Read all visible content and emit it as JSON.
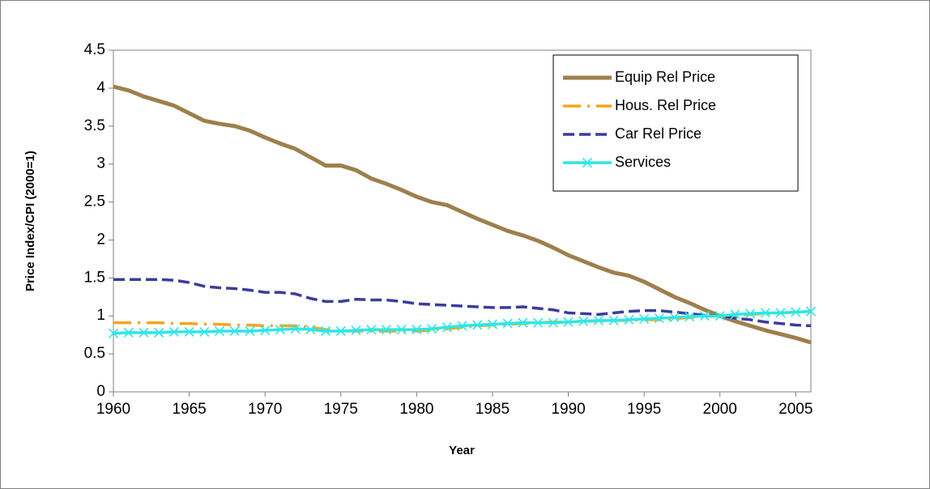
{
  "chart_data": {
    "type": "line",
    "x_label": "Year",
    "y_label": "Price Index/CPI (2000=1)",
    "x": [
      1960,
      1961,
      1962,
      1963,
      1964,
      1965,
      1966,
      1967,
      1968,
      1969,
      1970,
      1971,
      1972,
      1973,
      1974,
      1975,
      1976,
      1977,
      1978,
      1979,
      1980,
      1981,
      1982,
      1983,
      1984,
      1985,
      1986,
      1987,
      1988,
      1989,
      1990,
      1991,
      1992,
      1993,
      1994,
      1995,
      1996,
      1997,
      1998,
      1999,
      2000,
      2001,
      2002,
      2003,
      2004,
      2005,
      2006
    ],
    "series": [
      {
        "name": "Equip Rel Price",
        "color": "#9e7f4c",
        "style": "solid",
        "values": [
          4.02,
          3.97,
          3.89,
          3.83,
          3.77,
          3.67,
          3.57,
          3.53,
          3.5,
          3.44,
          3.35,
          3.27,
          3.2,
          3.09,
          2.98,
          2.98,
          2.92,
          2.81,
          2.74,
          2.66,
          2.57,
          2.5,
          2.46,
          2.37,
          2.28,
          2.2,
          2.12,
          2.06,
          1.99,
          1.9,
          1.8,
          1.72,
          1.64,
          1.57,
          1.53,
          1.45,
          1.35,
          1.25,
          1.17,
          1.08,
          1.0,
          0.93,
          0.87,
          0.81,
          0.76,
          0.71,
          0.65
        ]
      },
      {
        "name": "Hous. Rel Price",
        "color": "#f7a41c",
        "style": "dashdot",
        "values": [
          0.91,
          0.91,
          0.91,
          0.91,
          0.9,
          0.9,
          0.89,
          0.89,
          0.88,
          0.88,
          0.87,
          0.87,
          0.87,
          0.85,
          0.82,
          0.8,
          0.8,
          0.8,
          0.8,
          0.8,
          0.8,
          0.81,
          0.83,
          0.85,
          0.87,
          0.88,
          0.89,
          0.9,
          0.91,
          0.92,
          0.92,
          0.93,
          0.93,
          0.94,
          0.94,
          0.95,
          0.95,
          0.96,
          0.98,
          0.99,
          1.0,
          1.01,
          1.02,
          1.03,
          1.04,
          1.05,
          1.06
        ]
      },
      {
        "name": "Car Rel Price",
        "color": "#3c3c9c",
        "style": "dashed",
        "values": [
          1.48,
          1.48,
          1.48,
          1.48,
          1.47,
          1.44,
          1.39,
          1.37,
          1.36,
          1.34,
          1.31,
          1.31,
          1.29,
          1.23,
          1.19,
          1.19,
          1.22,
          1.21,
          1.21,
          1.19,
          1.16,
          1.15,
          1.14,
          1.13,
          1.12,
          1.11,
          1.11,
          1.12,
          1.1,
          1.08,
          1.04,
          1.03,
          1.02,
          1.04,
          1.06,
          1.07,
          1.07,
          1.05,
          1.03,
          1.01,
          1.0,
          0.97,
          0.95,
          0.92,
          0.9,
          0.88,
          0.87
        ]
      },
      {
        "name": "Services",
        "color": "#2ee6e6",
        "style": "solid",
        "marker": "x",
        "values": [
          0.77,
          0.78,
          0.78,
          0.78,
          0.79,
          0.79,
          0.79,
          0.8,
          0.8,
          0.8,
          0.81,
          0.82,
          0.83,
          0.82,
          0.8,
          0.8,
          0.81,
          0.82,
          0.82,
          0.82,
          0.82,
          0.83,
          0.85,
          0.87,
          0.88,
          0.89,
          0.9,
          0.91,
          0.91,
          0.91,
          0.92,
          0.93,
          0.94,
          0.94,
          0.95,
          0.96,
          0.97,
          0.98,
          0.99,
          1.0,
          1.0,
          1.02,
          1.03,
          1.04,
          1.04,
          1.05,
          1.06
        ]
      }
    ],
    "xlim": [
      1960,
      2006
    ],
    "xticks": [
      1960,
      1965,
      1970,
      1975,
      1980,
      1985,
      1990,
      1995,
      2000,
      2005
    ],
    "ylim": [
      0,
      4.5
    ],
    "yticks": [
      0,
      0.5,
      1,
      1.5,
      2,
      2.5,
      3,
      3.5,
      4,
      4.5
    ],
    "grid": false,
    "legend": "upper right"
  }
}
